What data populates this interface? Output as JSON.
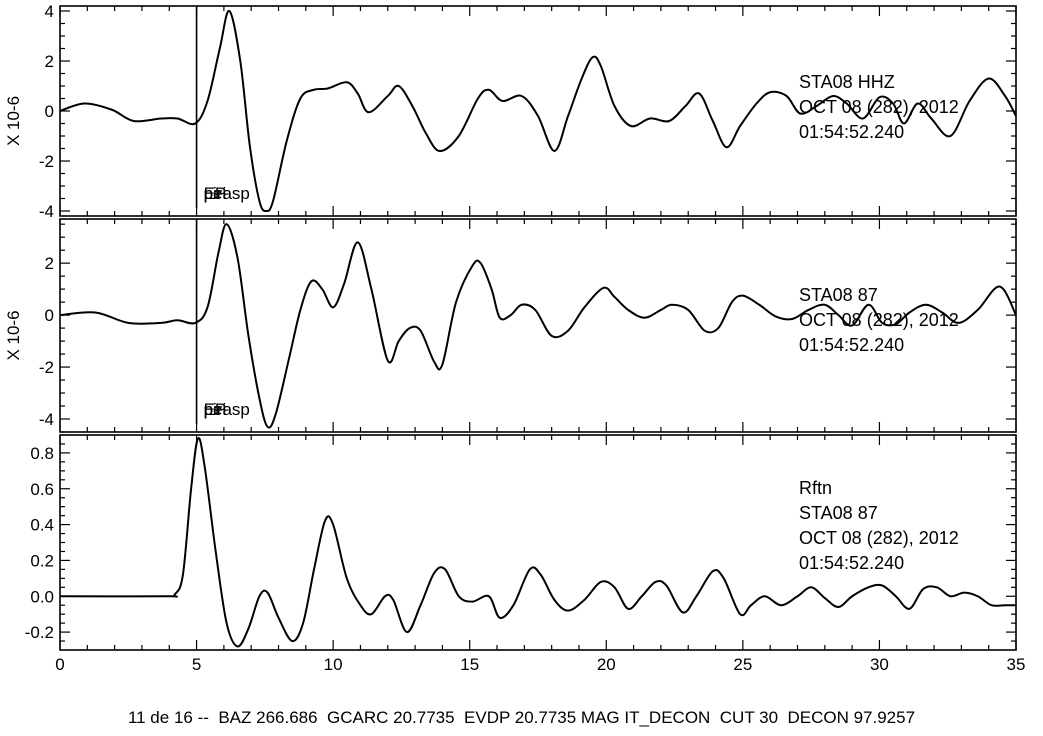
{
  "footer": "11 de 16 --  BAZ 266.686  GCARC 20.7735  EVDP 20.7735 MAG IT_DECON  CUT 30  DECON 97.9257",
  "chart_data": [
    {
      "type": "line",
      "x_range": [
        0,
        35
      ],
      "ylim": [
        -4.2,
        4.2
      ],
      "yticks": [
        -4,
        -2,
        0,
        2,
        4
      ],
      "ytick_labels": [
        "-4",
        "-2",
        "0",
        "2",
        "4"
      ],
      "ylabel": "X 10-6",
      "markers": [
        {
          "x": 5,
          "labels": [
            "EP",
            "pirasp",
            "pei"
          ]
        }
      ],
      "info_lines": [
        "STA08  HHZ",
        "OCT 08 (282), 2012",
        "01:54:52.240"
      ],
      "series": [
        {
          "points": [
            [
              0,
              0
            ],
            [
              0.9,
              0.3
            ],
            [
              1.9,
              0.05
            ],
            [
              2.7,
              -0.4
            ],
            [
              3.7,
              -0.3
            ],
            [
              4.3,
              -0.3
            ],
            [
              4.95,
              -0.5
            ],
            [
              5.4,
              0.4
            ],
            [
              5.85,
              2.5
            ],
            [
              6.2,
              4.0
            ],
            [
              6.6,
              2.0
            ],
            [
              6.95,
              -1.4
            ],
            [
              7.3,
              -3.6
            ],
            [
              7.55,
              -4.0
            ],
            [
              7.8,
              -3.6
            ],
            [
              8.3,
              -1.2
            ],
            [
              8.8,
              0.5
            ],
            [
              9.3,
              0.85
            ],
            [
              9.8,
              0.9
            ],
            [
              10.5,
              1.15
            ],
            [
              10.9,
              0.7
            ],
            [
              11.3,
              -0.05
            ],
            [
              12.0,
              0.6
            ],
            [
              12.4,
              1.0
            ],
            [
              12.9,
              0.2
            ],
            [
              13.4,
              -0.9
            ],
            [
              13.9,
              -1.6
            ],
            [
              14.6,
              -1.0
            ],
            [
              15.3,
              0.5
            ],
            [
              15.7,
              0.85
            ],
            [
              16.2,
              0.4
            ],
            [
              16.9,
              0.6
            ],
            [
              17.5,
              -0.2
            ],
            [
              18.1,
              -1.6
            ],
            [
              18.6,
              -0.2
            ],
            [
              19.1,
              1.3
            ],
            [
              19.5,
              2.15
            ],
            [
              19.8,
              1.8
            ],
            [
              20.3,
              0.2
            ],
            [
              20.9,
              -0.6
            ],
            [
              21.6,
              -0.3
            ],
            [
              22.3,
              -0.4
            ],
            [
              22.9,
              0.2
            ],
            [
              23.4,
              0.7
            ],
            [
              23.9,
              -0.4
            ],
            [
              24.4,
              -1.45
            ],
            [
              24.9,
              -0.6
            ],
            [
              25.5,
              0.3
            ],
            [
              26.0,
              0.75
            ],
            [
              26.6,
              0.6
            ],
            [
              27.1,
              -0.1
            ],
            [
              27.7,
              0.2
            ],
            [
              28.3,
              0.6
            ],
            [
              28.8,
              0.3
            ],
            [
              29.4,
              -0.3
            ],
            [
              30.0,
              0.55
            ],
            [
              30.5,
              0.3
            ],
            [
              30.9,
              -0.5
            ],
            [
              31.4,
              0.3
            ],
            [
              31.9,
              -0.3
            ],
            [
              32.6,
              -1.0
            ],
            [
              33.3,
              0.4
            ],
            [
              34.0,
              1.3
            ],
            [
              34.6,
              0.6
            ],
            [
              35,
              -0.2
            ]
          ]
        }
      ]
    },
    {
      "type": "line",
      "x_range": [
        0,
        35
      ],
      "ylim": [
        -4.5,
        3.7
      ],
      "yticks": [
        -4,
        -2,
        0,
        2
      ],
      "ytick_labels": [
        "-4",
        "-2",
        "0",
        "2"
      ],
      "ylabel": "X 10-6",
      "markers": [
        {
          "x": 5,
          "labels": [
            "EP",
            "pirasp",
            "pei"
          ]
        }
      ],
      "info_lines": [
        "STA08  87",
        "OCT 08 (282), 2012",
        "01:54:52.240"
      ],
      "series": [
        {
          "points": [
            [
              0,
              0
            ],
            [
              1.3,
              0.1
            ],
            [
              2.5,
              -0.3
            ],
            [
              3.7,
              -0.3
            ],
            [
              4.3,
              -0.2
            ],
            [
              4.95,
              -0.3
            ],
            [
              5.4,
              0.3
            ],
            [
              5.8,
              2.4
            ],
            [
              6.1,
              3.5
            ],
            [
              6.5,
              2.2
            ],
            [
              6.9,
              -0.8
            ],
            [
              7.3,
              -3.2
            ],
            [
              7.6,
              -4.3
            ],
            [
              7.9,
              -3.8
            ],
            [
              8.4,
              -1.6
            ],
            [
              8.8,
              0.2
            ],
            [
              9.2,
              1.3
            ],
            [
              9.6,
              1.0
            ],
            [
              10.0,
              0.3
            ],
            [
              10.4,
              1.2
            ],
            [
              10.9,
              2.8
            ],
            [
              11.4,
              1.0
            ],
            [
              12.0,
              -1.75
            ],
            [
              12.4,
              -1.0
            ],
            [
              12.8,
              -0.5
            ],
            [
              13.2,
              -0.6
            ],
            [
              13.7,
              -1.8
            ],
            [
              14.0,
              -1.9
            ],
            [
              14.5,
              0.5
            ],
            [
              15.1,
              1.9
            ],
            [
              15.4,
              2.0
            ],
            [
              15.8,
              1.0
            ],
            [
              16.1,
              -0.1
            ],
            [
              16.5,
              0.0
            ],
            [
              16.9,
              0.4
            ],
            [
              17.4,
              0.2
            ],
            [
              18.0,
              -0.8
            ],
            [
              18.6,
              -0.6
            ],
            [
              19.2,
              0.3
            ],
            [
              19.9,
              1.05
            ],
            [
              20.3,
              0.7
            ],
            [
              20.8,
              0.2
            ],
            [
              21.4,
              -0.1
            ],
            [
              22.0,
              0.2
            ],
            [
              22.4,
              0.4
            ],
            [
              23.0,
              0.2
            ],
            [
              23.6,
              -0.6
            ],
            [
              24.1,
              -0.5
            ],
            [
              24.6,
              0.5
            ],
            [
              25.0,
              0.75
            ],
            [
              25.6,
              0.4
            ],
            [
              26.2,
              -0.05
            ],
            [
              26.8,
              -0.15
            ],
            [
              27.4,
              0.2
            ],
            [
              28.0,
              0.4
            ],
            [
              28.5,
              0.0
            ],
            [
              29.0,
              -0.4
            ],
            [
              29.6,
              0.4
            ],
            [
              30.1,
              -0.3
            ],
            [
              30.6,
              -0.35
            ],
            [
              31.1,
              0.1
            ],
            [
              31.7,
              0.4
            ],
            [
              32.3,
              0.1
            ],
            [
              32.9,
              -0.3
            ],
            [
              33.6,
              0.2
            ],
            [
              34.4,
              1.1
            ],
            [
              35,
              0.0
            ]
          ]
        }
      ]
    },
    {
      "type": "line",
      "x_range": [
        0,
        35
      ],
      "xticks": [
        0,
        5,
        10,
        15,
        20,
        25,
        30,
        35
      ],
      "xtick_labels": [
        "0",
        "5",
        "10",
        "15",
        "20",
        "25",
        "30",
        "35"
      ],
      "ylim": [
        -0.3,
        0.9
      ],
      "yticks": [
        -0.2,
        0.0,
        0.2,
        0.4,
        0.6,
        0.8
      ],
      "ytick_labels": [
        "-0.2",
        "0.0",
        "0.2",
        "0.4",
        "0.6",
        "0.8"
      ],
      "info_lines": [
        "Rftn",
        "STA08  87",
        "OCT 08 (282), 2012",
        "01:54:52.240"
      ],
      "series": [
        {
          "points": [
            [
              0,
              0
            ],
            [
              3.9,
              0
            ],
            [
              4.2,
              0.01
            ],
            [
              4.5,
              0.12
            ],
            [
              4.8,
              0.6
            ],
            [
              5.05,
              0.88
            ],
            [
              5.3,
              0.72
            ],
            [
              5.7,
              0.25
            ],
            [
              6.1,
              -0.15
            ],
            [
              6.5,
              -0.28
            ],
            [
              6.9,
              -0.18
            ],
            [
              7.3,
              0.0
            ],
            [
              7.6,
              0.02
            ],
            [
              8.0,
              -0.12
            ],
            [
              8.5,
              -0.25
            ],
            [
              8.9,
              -0.15
            ],
            [
              9.3,
              0.15
            ],
            [
              9.7,
              0.42
            ],
            [
              10.0,
              0.4
            ],
            [
              10.5,
              0.1
            ],
            [
              11.0,
              -0.05
            ],
            [
              11.4,
              -0.1
            ],
            [
              11.9,
              0.0
            ],
            [
              12.2,
              -0.02
            ],
            [
              12.7,
              -0.2
            ],
            [
              13.2,
              -0.05
            ],
            [
              13.7,
              0.13
            ],
            [
              14.1,
              0.15
            ],
            [
              14.6,
              0.0
            ],
            [
              15.1,
              -0.03
            ],
            [
              15.7,
              0.0
            ],
            [
              16.1,
              -0.12
            ],
            [
              16.6,
              -0.05
            ],
            [
              17.2,
              0.15
            ],
            [
              17.6,
              0.12
            ],
            [
              18.1,
              -0.02
            ],
            [
              18.6,
              -0.08
            ],
            [
              19.2,
              -0.02
            ],
            [
              19.8,
              0.08
            ],
            [
              20.3,
              0.05
            ],
            [
              20.8,
              -0.07
            ],
            [
              21.3,
              0.0
            ],
            [
              21.8,
              0.08
            ],
            [
              22.2,
              0.06
            ],
            [
              22.8,
              -0.09
            ],
            [
              23.3,
              0.0
            ],
            [
              23.9,
              0.14
            ],
            [
              24.3,
              0.1
            ],
            [
              24.9,
              -0.1
            ],
            [
              25.3,
              -0.05
            ],
            [
              25.8,
              0.0
            ],
            [
              26.4,
              -0.05
            ],
            [
              27.0,
              0.0
            ],
            [
              27.5,
              0.05
            ],
            [
              28.0,
              -0.01
            ],
            [
              28.5,
              -0.06
            ],
            [
              29.0,
              0.0
            ],
            [
              29.6,
              0.05
            ],
            [
              30.1,
              0.06
            ],
            [
              30.6,
              0.0
            ],
            [
              31.1,
              -0.07
            ],
            [
              31.6,
              0.04
            ],
            [
              32.1,
              0.05
            ],
            [
              32.6,
              0.0
            ],
            [
              33.1,
              0.02
            ],
            [
              33.6,
              0.0
            ],
            [
              34.1,
              -0.05
            ],
            [
              34.6,
              -0.05
            ],
            [
              35,
              -0.05
            ]
          ]
        }
      ]
    }
  ]
}
